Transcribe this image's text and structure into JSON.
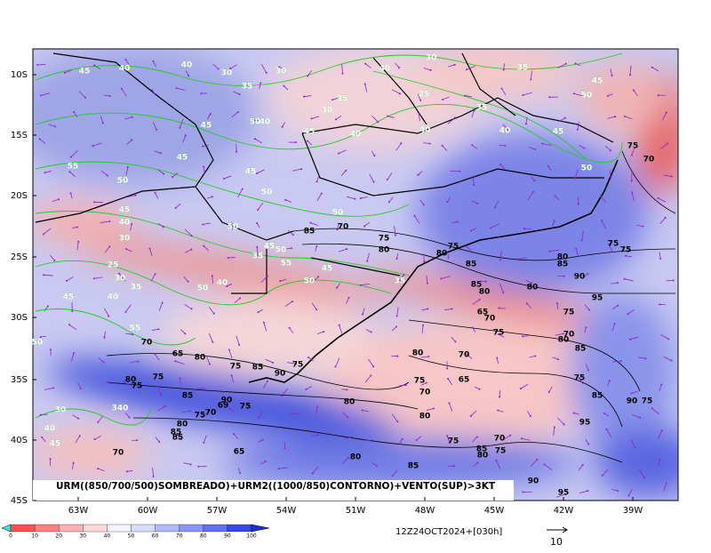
{
  "map": {
    "lat_labels": [
      "10S",
      "15S",
      "20S",
      "25S",
      "30S",
      "35S",
      "40S",
      "45S"
    ],
    "lon_labels": [
      "63W",
      "60W",
      "57W",
      "54W",
      "51W",
      "48W",
      "45W",
      "42W",
      "39W"
    ],
    "caption": "URM((850/700/500)SOMBREADO)+URM2((1000/850)CONTORNO)+VENTO(SUP)>3KT",
    "colorbar_ticks": [
      0,
      10,
      20,
      30,
      40,
      50,
      60,
      70,
      80,
      90,
      100
    ],
    "timestamp": "12Z24OCT2024+[030h]",
    "vector_scale": "10",
    "green_labels": [
      "45",
      "40",
      "40",
      "30",
      "30",
      "40",
      "30",
      "35",
      "50",
      "45",
      "35",
      "35",
      "25",
      "30",
      "35",
      "45",
      "50",
      "40",
      "45",
      "40",
      "40",
      "40",
      "45",
      "45",
      "55",
      "45",
      "50",
      "50",
      "50",
      "45",
      "40",
      "50",
      "50",
      "30",
      "45",
      "50",
      "35",
      "55",
      "25",
      "45",
      "30",
      "35",
      "35",
      "50",
      "50",
      "40",
      "40",
      "45",
      "55",
      "50",
      "30",
      "340",
      "40",
      "45"
    ],
    "black_labels": [
      "85",
      "70",
      "75",
      "80",
      "75",
      "80",
      "85",
      "85",
      "80",
      "75",
      "75",
      "75",
      "70",
      "90",
      "80",
      "85",
      "80",
      "95",
      "75",
      "65",
      "70",
      "75",
      "70",
      "80",
      "85",
      "70",
      "65",
      "80",
      "75",
      "85",
      "90",
      "75",
      "80",
      "70",
      "80",
      "75",
      "75",
      "85",
      "90",
      "75",
      "69",
      "70",
      "75",
      "80",
      "85",
      "85",
      "80",
      "75",
      "70",
      "65",
      "80",
      "75",
      "85",
      "90",
      "75",
      "95",
      "70",
      "75",
      "85",
      "80",
      "75",
      "70",
      "65",
      "80",
      "85",
      "90",
      "95"
    ]
  }
}
